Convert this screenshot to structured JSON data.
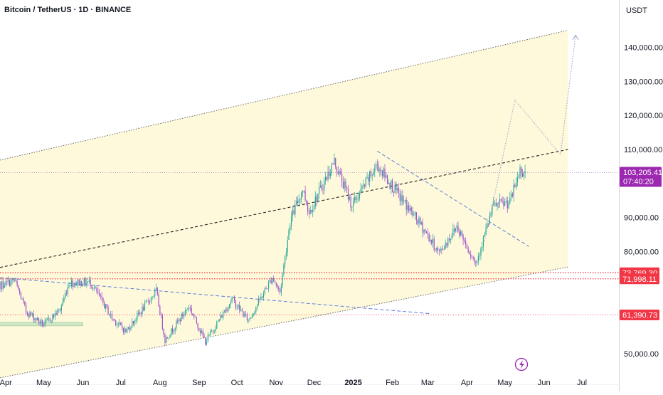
{
  "header": {
    "title": "Bitcoin / TetherUS · 1D · BINANCE",
    "currency": "USDT"
  },
  "colors": {
    "up": "#26a69a",
    "down": "#9b4dca",
    "channel_fill": "#fff9db",
    "pivot_red": "#f23645",
    "current_price_bg": "#9c27b0",
    "trend_blue": "#5b7fdb"
  },
  "chart_data": {
    "type": "candlestick",
    "title": "Bitcoin / TetherUS · 1D · BINANCE",
    "ylim": [
      45000,
      150000
    ],
    "y_ticks": [
      50000,
      80000,
      90000,
      110000,
      120000,
      130000,
      140000
    ],
    "y_tick_labels": [
      "50,000.00",
      "80,000.00",
      "90,000.00",
      "110,000.00",
      "120,000.00",
      "130,000.00",
      "140,000.00"
    ],
    "x_ticks": [
      {
        "label": "Apr",
        "date": "2024-04-01"
      },
      {
        "label": "May",
        "date": "2024-05-01"
      },
      {
        "label": "Jun",
        "date": "2024-06-01"
      },
      {
        "label": "Jul",
        "date": "2024-07-01"
      },
      {
        "label": "Aug",
        "date": "2024-08-01"
      },
      {
        "label": "Sep",
        "date": "2024-09-01"
      },
      {
        "label": "Oct",
        "date": "2024-10-01"
      },
      {
        "label": "Nov",
        "date": "2024-11-01"
      },
      {
        "label": "Dec",
        "date": "2024-12-01"
      },
      {
        "label": "2025",
        "date": "2025-01-01"
      },
      {
        "label": "Feb",
        "date": "2025-02-01"
      },
      {
        "label": "Mar",
        "date": "2025-03-01"
      },
      {
        "label": "Apr",
        "date": "2025-04-01"
      },
      {
        "label": "May",
        "date": "2025-05-01"
      },
      {
        "label": "Jun",
        "date": "2025-06-01"
      },
      {
        "label": "Jul",
        "date": "2025-07-01"
      }
    ],
    "price_series": [
      {
        "date": "2024-03-23",
        "close": 69500
      },
      {
        "date": "2024-04-08",
        "close": 71500
      },
      {
        "date": "2024-04-17",
        "close": 62500
      },
      {
        "date": "2024-05-01",
        "close": 58500
      },
      {
        "date": "2024-05-14",
        "close": 63000
      },
      {
        "date": "2024-05-21",
        "close": 70800
      },
      {
        "date": "2024-06-07",
        "close": 71000
      },
      {
        "date": "2024-06-24",
        "close": 60500
      },
      {
        "date": "2024-07-05",
        "close": 56500
      },
      {
        "date": "2024-07-14",
        "close": 61000
      },
      {
        "date": "2024-07-29",
        "close": 68500
      },
      {
        "date": "2024-08-05",
        "close": 54000
      },
      {
        "date": "2024-08-24",
        "close": 64000
      },
      {
        "date": "2024-09-06",
        "close": 53500
      },
      {
        "date": "2024-09-27",
        "close": 66000
      },
      {
        "date": "2024-10-10",
        "close": 59800
      },
      {
        "date": "2024-10-29",
        "close": 72500
      },
      {
        "date": "2024-11-04",
        "close": 68000
      },
      {
        "date": "2024-11-12",
        "close": 89000
      },
      {
        "date": "2024-11-22",
        "close": 98500
      },
      {
        "date": "2024-11-27",
        "close": 91500
      },
      {
        "date": "2024-12-17",
        "close": 106500
      },
      {
        "date": "2024-12-31",
        "close": 93500
      },
      {
        "date": "2025-01-20",
        "close": 105500
      },
      {
        "date": "2025-02-03",
        "close": 98000
      },
      {
        "date": "2025-02-25",
        "close": 87000
      },
      {
        "date": "2025-03-10",
        "close": 79500
      },
      {
        "date": "2025-03-24",
        "close": 87500
      },
      {
        "date": "2025-04-08",
        "close": 76500
      },
      {
        "date": "2025-04-22",
        "close": 93500
      },
      {
        "date": "2025-05-05",
        "close": 94500
      },
      {
        "date": "2025-05-13",
        "close": 104000
      },
      {
        "date": "2025-05-17",
        "close": 103205.41
      }
    ],
    "channel": {
      "upper": [
        {
          "date": "2024-03-23",
          "price": 106500
        },
        {
          "date": "2025-06-20",
          "price": 145000
        }
      ],
      "median": [
        {
          "date": "2024-03-23",
          "price": 75000
        },
        {
          "date": "2025-06-20",
          "price": 110000
        }
      ],
      "lower": [
        {
          "date": "2024-04-25",
          "price": 45000
        },
        {
          "date": "2025-06-20",
          "price": 75500
        }
      ]
    },
    "trend_lines": [
      {
        "from": {
          "date": "2024-03-23",
          "price": 72500
        },
        "to": {
          "date": "2025-03-02",
          "price": 61800
        }
      },
      {
        "from": {
          "date": "2025-01-20",
          "price": 109500
        },
        "to": {
          "date": "2025-05-20",
          "price": 81500
        }
      }
    ],
    "projection_path": [
      {
        "date": "2025-04-15",
        "price": 83000
      },
      {
        "date": "2025-05-09",
        "price": 124500
      },
      {
        "date": "2025-06-14",
        "price": 108500
      },
      {
        "date": "2025-06-26",
        "price": 143500
      }
    ],
    "support_zone": {
      "from": "2024-03-23",
      "to": "2024-06-01",
      "low": 58200,
      "high": 59200
    },
    "horizontal_levels": [
      {
        "price": 73769.3,
        "label": "73,769.30"
      },
      {
        "price": 71998.11,
        "label": "71,998.11"
      },
      {
        "price": 61390.73,
        "label": "61,390.73"
      }
    ],
    "current_price": {
      "price": 103205.41,
      "label": "103,205.41",
      "countdown": "07:40:20"
    }
  }
}
